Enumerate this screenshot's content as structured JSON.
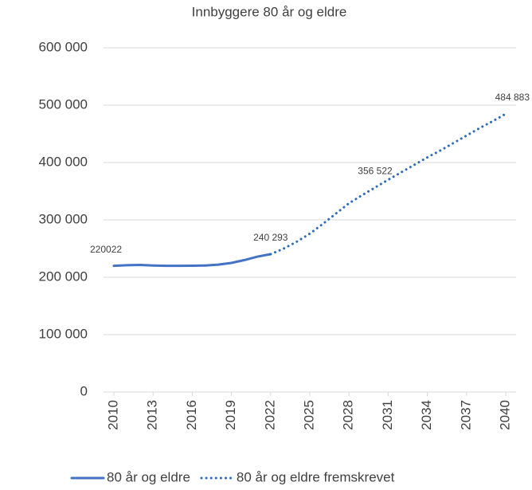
{
  "chart_data": {
    "type": "line",
    "title": "Innbyggere 80 år og eldre",
    "xlim": [
      2010,
      2040
    ],
    "xticks": [
      2010,
      2013,
      2016,
      2019,
      2022,
      2025,
      2028,
      2031,
      2034,
      2037,
      2040
    ],
    "ylim": [
      0,
      600000
    ],
    "yticks": [
      0,
      {
        "value": 100000,
        "label": "100 000"
      },
      {
        "value": 200000,
        "label": "200 000"
      },
      {
        "value": 300000,
        "label": "300 000"
      },
      {
        "value": 400000,
        "label": "400 000"
      },
      {
        "value": 500000,
        "label": "500 000"
      },
      {
        "value": 600000,
        "label": "600 000"
      }
    ],
    "grid": true,
    "legend": "bottom",
    "series": [
      {
        "name": "80 år og eldre",
        "color": "#4472c4",
        "style": "solid",
        "x": [
          2010,
          2011,
          2012,
          2013,
          2014,
          2015,
          2016,
          2017,
          2018,
          2019,
          2020,
          2021,
          2022
        ],
        "values": [
          220022,
          221000,
          221500,
          220500,
          220000,
          220000,
          220200,
          220500,
          222000,
          225000,
          230000,
          236000,
          240293
        ],
        "value_labels": [
          "220022",
          null,
          null,
          null,
          null,
          null,
          null,
          null,
          null,
          null,
          null,
          null,
          "240 293"
        ]
      },
      {
        "name": "80 år og eldre fremskrevet",
        "color": "#2e6bb8",
        "style": "dotted",
        "x": [
          2022,
          2023,
          2024,
          2025,
          2026,
          2027,
          2028,
          2029,
          2030,
          2031,
          2032,
          2033,
          2034,
          2035,
          2036,
          2037,
          2038,
          2039,
          2040
        ],
        "values": [
          240293,
          250000,
          262000,
          276000,
          293000,
          311000,
          329000,
          343000,
          356522,
          370000,
          383000,
          396000,
          409000,
          421000,
          434000,
          447000,
          460000,
          472000,
          484883
        ],
        "value_labels": [
          null,
          null,
          null,
          null,
          null,
          null,
          null,
          null,
          "356 522",
          null,
          null,
          null,
          null,
          null,
          null,
          null,
          null,
          null,
          "484 883"
        ]
      }
    ]
  }
}
